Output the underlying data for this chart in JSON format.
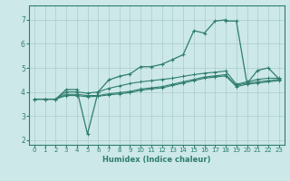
{
  "xlabel": "Humidex (Indice chaleur)",
  "background_color": "#cde8e8",
  "grid_color": "#aacccc",
  "line_color": "#2e7d6e",
  "xlim": [
    -0.5,
    23.5
  ],
  "ylim": [
    1.8,
    7.6
  ],
  "yticks": [
    2,
    3,
    4,
    5,
    6,
    7
  ],
  "xticks": [
    0,
    1,
    2,
    3,
    4,
    5,
    6,
    7,
    8,
    9,
    10,
    11,
    12,
    13,
    14,
    15,
    16,
    17,
    18,
    19,
    20,
    21,
    22,
    23
  ],
  "line1_x": [
    0,
    1,
    2,
    3,
    4,
    5,
    6,
    7,
    8,
    9,
    10,
    11,
    12,
    13,
    14,
    15,
    16,
    17,
    18,
    18,
    19,
    20,
    21,
    22,
    23
  ],
  "line1_y": [
    3.7,
    3.7,
    3.7,
    4.1,
    4.1,
    2.25,
    4.0,
    4.5,
    4.65,
    4.75,
    5.05,
    5.05,
    5.15,
    5.35,
    5.55,
    6.55,
    6.45,
    6.95,
    7.0,
    6.95,
    6.95,
    4.35,
    4.9,
    5.0,
    4.55
  ],
  "line2_x": [
    0,
    1,
    2,
    3,
    4,
    5,
    6,
    7,
    8,
    9,
    10,
    11,
    12,
    13,
    14,
    15,
    16,
    17,
    18,
    19,
    20,
    21,
    22,
    23
  ],
  "line2_y": [
    3.7,
    3.7,
    3.7,
    4.0,
    4.0,
    3.95,
    4.0,
    4.15,
    4.25,
    4.35,
    4.42,
    4.47,
    4.52,
    4.57,
    4.65,
    4.72,
    4.78,
    4.82,
    4.87,
    4.32,
    4.42,
    4.52,
    4.57,
    4.57
  ],
  "line3_x": [
    0,
    1,
    2,
    3,
    4,
    5,
    6,
    7,
    8,
    9,
    10,
    11,
    12,
    13,
    14,
    15,
    16,
    17,
    18,
    19,
    20,
    21,
    22,
    23
  ],
  "line3_y": [
    3.7,
    3.7,
    3.7,
    3.9,
    3.9,
    3.85,
    3.85,
    3.92,
    3.97,
    4.02,
    4.12,
    4.17,
    4.22,
    4.32,
    4.42,
    4.52,
    4.62,
    4.67,
    4.72,
    4.27,
    4.37,
    4.42,
    4.47,
    4.52
  ],
  "line4_x": [
    0,
    1,
    2,
    3,
    4,
    5,
    6,
    7,
    8,
    9,
    10,
    11,
    12,
    13,
    14,
    15,
    16,
    17,
    18,
    19,
    20,
    21,
    22,
    23
  ],
  "line4_y": [
    3.7,
    3.7,
    3.7,
    3.85,
    3.85,
    3.8,
    3.82,
    3.88,
    3.92,
    3.97,
    4.07,
    4.12,
    4.17,
    4.27,
    4.37,
    4.47,
    4.57,
    4.62,
    4.67,
    4.22,
    4.32,
    4.37,
    4.42,
    4.47
  ]
}
